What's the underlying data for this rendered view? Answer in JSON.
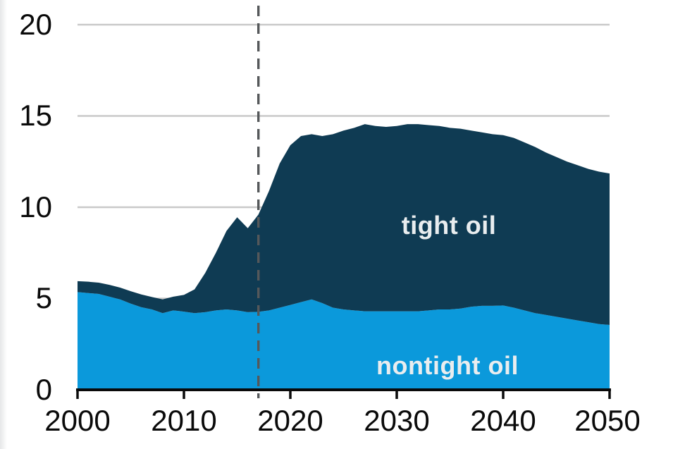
{
  "figure": {
    "y_axis_tick_labels": [
      "20",
      "15",
      "10",
      "5",
      "0"
    ],
    "x_axis_tick_labels": [
      "2000",
      "2010",
      "2020",
      "2030",
      "2040",
      "2050"
    ],
    "area_labels": {
      "tight": "tight oil",
      "nontight": "nontight oil"
    }
  },
  "chart_data": {
    "type": "area",
    "stacked": true,
    "title": "",
    "legend_position": "in-plot-labels",
    "grid": "horizontal",
    "xlim": [
      2000,
      2050
    ],
    "ylim": [
      0,
      20
    ],
    "yticks": [
      0,
      5,
      10,
      15,
      20
    ],
    "xticks": [
      2000,
      2010,
      2020,
      2030,
      2040,
      2050
    ],
    "history_divider_year": 2017,
    "x": [
      2000,
      2001,
      2002,
      2003,
      2004,
      2005,
      2006,
      2007,
      2008,
      2009,
      2010,
      2011,
      2012,
      2013,
      2014,
      2015,
      2016,
      2017,
      2018,
      2019,
      2020,
      2021,
      2022,
      2023,
      2024,
      2025,
      2026,
      2027,
      2028,
      2029,
      2030,
      2031,
      2032,
      2033,
      2034,
      2035,
      2036,
      2037,
      2038,
      2039,
      2040,
      2041,
      2042,
      2043,
      2044,
      2045,
      2046,
      2047,
      2048,
      2049,
      2050
    ],
    "series": [
      {
        "name": "nontight oil",
        "color": "#0b99db",
        "values": [
          5.35,
          5.3,
          5.25,
          5.1,
          4.95,
          4.72,
          4.52,
          4.4,
          4.2,
          4.35,
          4.28,
          4.2,
          4.25,
          4.35,
          4.4,
          4.35,
          4.25,
          4.27,
          4.35,
          4.5,
          4.65,
          4.8,
          4.95,
          4.75,
          4.5,
          4.4,
          4.35,
          4.3,
          4.3,
          4.3,
          4.3,
          4.3,
          4.3,
          4.35,
          4.4,
          4.4,
          4.45,
          4.55,
          4.6,
          4.6,
          4.62,
          4.5,
          4.35,
          4.2,
          4.1,
          4.0,
          3.9,
          3.8,
          3.7,
          3.6,
          3.55
        ]
      },
      {
        "name": "tight oil",
        "color": "#0f3b53",
        "values": [
          0.6,
          0.62,
          0.62,
          0.65,
          0.65,
          0.68,
          0.7,
          0.68,
          0.75,
          0.75,
          0.92,
          1.3,
          2.15,
          3.15,
          4.3,
          5.1,
          4.6,
          5.33,
          6.55,
          7.9,
          8.75,
          9.1,
          9.05,
          9.15,
          9.5,
          9.8,
          10.0,
          10.25,
          10.15,
          10.1,
          10.15,
          10.25,
          10.25,
          10.15,
          10.05,
          9.95,
          9.85,
          9.65,
          9.5,
          9.4,
          9.33,
          9.3,
          9.2,
          9.1,
          8.9,
          8.75,
          8.6,
          8.5,
          8.4,
          8.35,
          8.3
        ]
      }
    ],
    "colors": {
      "gridline": "#c9c9c9",
      "axis": "#0a0a0a",
      "divider": "#55585a",
      "tick_text": "#0a0a0a",
      "area_label_text": "#e9edef",
      "background": "#ffffff"
    }
  }
}
